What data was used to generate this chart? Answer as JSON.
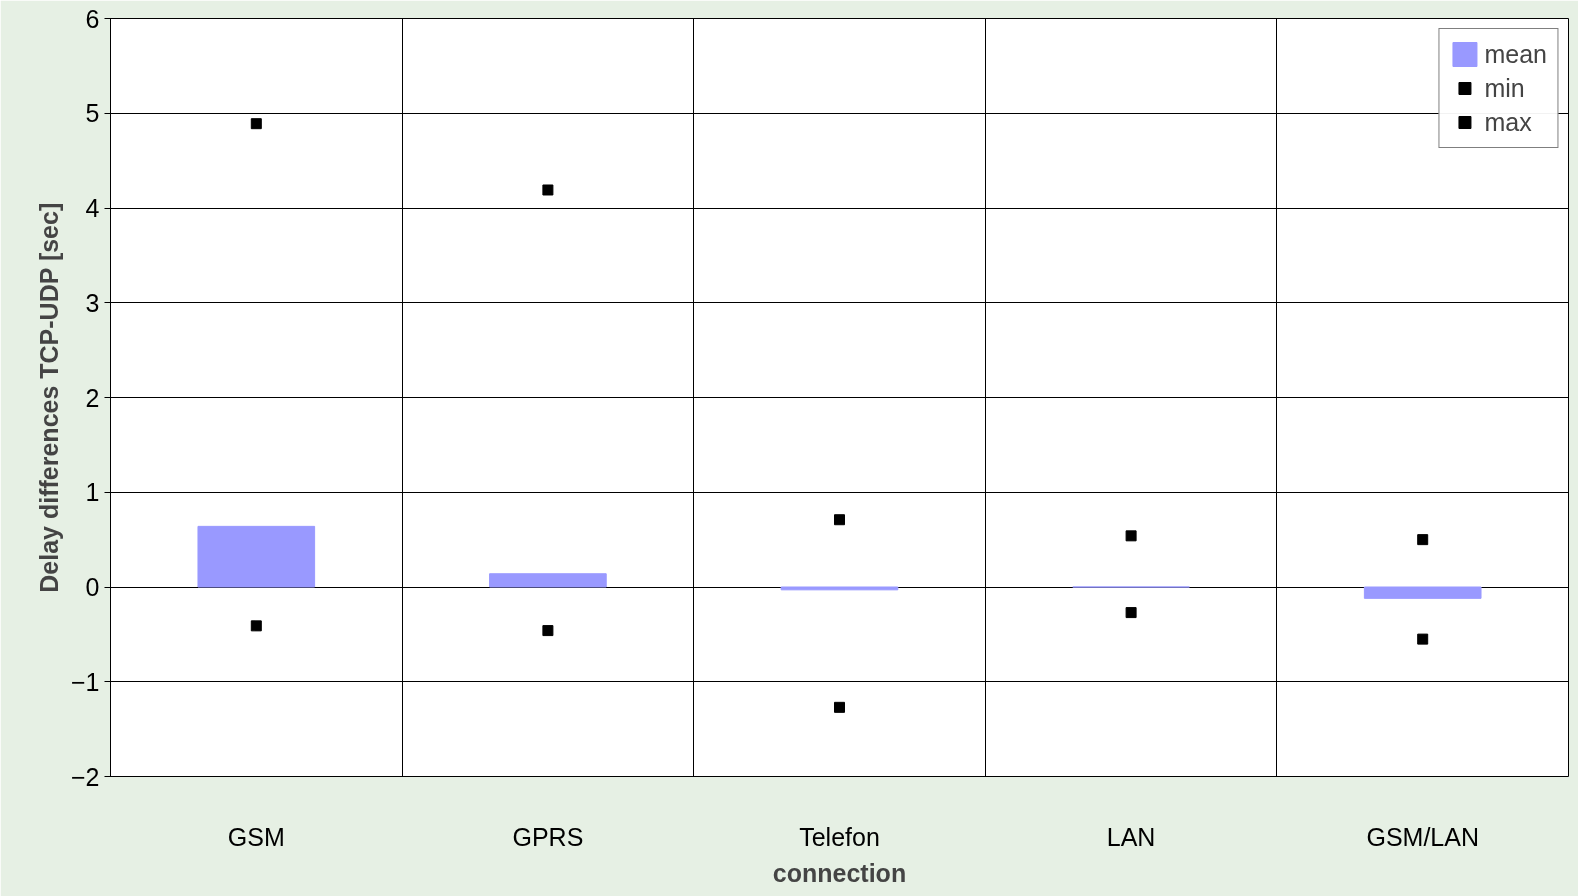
{
  "chart_data": {
    "type": "bar",
    "xlabel": "connection",
    "ylabel": "Delay differences TCP-UDP [sec]",
    "categories": [
      "GSM",
      "GPRS",
      "Telefon",
      "LAN",
      "GSM/LAN"
    ],
    "series": [
      {
        "name": "mean",
        "color": "#9999ff",
        "values": [
          0.64,
          0.14,
          -0.03,
          0.0,
          -0.12
        ]
      },
      {
        "name": "min",
        "type": "scatter",
        "marker": "square",
        "color": "#000000",
        "values": [
          -0.41,
          -0.46,
          -1.27,
          -0.27,
          -0.55
        ]
      },
      {
        "name": "max",
        "type": "scatter",
        "marker": "square",
        "color": "#000000",
        "values": [
          4.89,
          4.19,
          0.71,
          0.54,
          0.5
        ]
      }
    ],
    "ylim": [
      -2,
      6
    ],
    "yticks": [
      -2,
      -1,
      0,
      1,
      2,
      3,
      4,
      5,
      6
    ],
    "grid": true,
    "legend": "top right"
  }
}
